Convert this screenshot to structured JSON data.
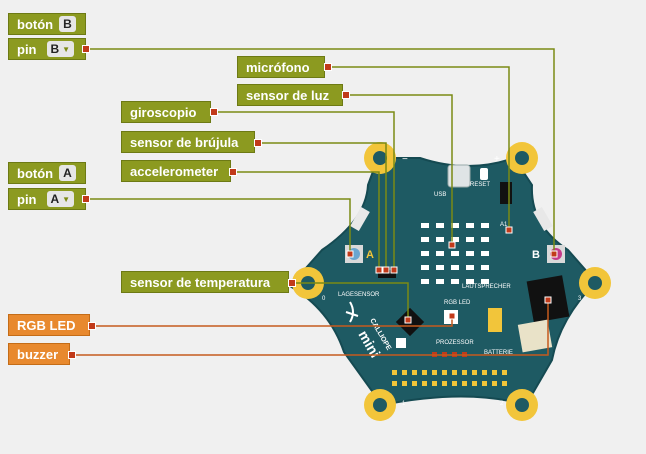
{
  "blocks": {
    "button_b": {
      "label": "botón",
      "letter": "B"
    },
    "pin_b": {
      "label": "pin",
      "value": "B"
    },
    "microphone": {
      "label": "micrófono"
    },
    "light_sensor": {
      "label": "sensor de luz"
    },
    "gyroscope": {
      "label": "giroscopio"
    },
    "compass": {
      "label": "sensor de brújula"
    },
    "accelerometer": {
      "label": "accelerometer"
    },
    "button_a": {
      "label": "botón",
      "letter": "A"
    },
    "pin_a": {
      "label": "pin",
      "value": "A"
    },
    "temperature": {
      "label": "sensor de temperatura"
    },
    "rgb_led": {
      "label": "RGB LED"
    },
    "buzzer": {
      "label": "buzzer"
    }
  },
  "board_labels": {
    "usb": "USB",
    "reset": "RESET",
    "minus": "−",
    "plus": "+",
    "a1": "A1",
    "btn_a": "A",
    "btn_b": "B",
    "lagesensor": "LAGESENSOR",
    "lautsprecher": "LAUTSPRECHER",
    "rgb_led": "RGB LED",
    "prozessor": "PROZESSOR",
    "batterie": "BATTERIE",
    "pad0": "0",
    "pad1": "1",
    "pad2": "2",
    "pad3": "3",
    "logo_top": "CALLIOPE",
    "logo_bottom": "mini"
  },
  "colors": {
    "board": "#1e5a63",
    "pad": "#f2c53a",
    "wire_olive": "#7a8a14",
    "wire_orange": "#c55a1e",
    "block_olive": "#8c9a20",
    "block_orange": "#e8892e"
  }
}
